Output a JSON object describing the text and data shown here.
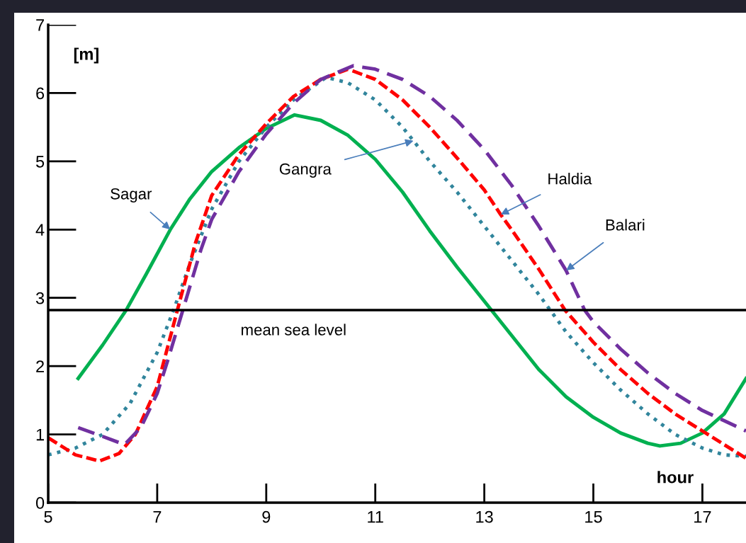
{
  "chart_data": {
    "type": "line",
    "xlabel": "hour",
    "ylabel": "[m]",
    "xlim": [
      5,
      17.8
    ],
    "ylim": [
      0,
      7
    ],
    "xticks": [
      5,
      7,
      9,
      11,
      13,
      15,
      17
    ],
    "yticks": [
      0,
      1,
      2,
      3,
      4,
      5,
      6,
      7
    ],
    "grid": false,
    "legend": false,
    "series": [
      {
        "color": "#00b050",
        "line_style": "solid",
        "x": [
          5.55,
          6,
          6.43,
          6.8,
          7.24,
          7.6,
          8,
          8.5,
          9,
          9.52,
          10,
          10.5,
          11,
          11.5,
          12,
          12.5,
          13.13,
          13.5,
          14,
          14.5,
          15,
          15.5,
          16,
          16.22,
          16.6,
          17,
          17.4,
          17.8
        ],
        "values": [
          1.82,
          2.31,
          2.82,
          3.35,
          4.0,
          4.45,
          4.85,
          5.2,
          5.48,
          5.68,
          5.6,
          5.38,
          5.03,
          4.55,
          3.98,
          3.45,
          2.82,
          2.45,
          1.95,
          1.55,
          1.25,
          1.02,
          0.87,
          0.83,
          0.87,
          1.02,
          1.3,
          1.82
        ]
      },
      {
        "color": "#31859c",
        "line_style": "dotted",
        "x": [
          5,
          5.5,
          6,
          6.5,
          7,
          7.3,
          7.6,
          8,
          8.5,
          9,
          9.5,
          10.1,
          10.5,
          11,
          11.5,
          11.7,
          12,
          12.5,
          13,
          13.5,
          14,
          14.5,
          15,
          15.5,
          16,
          16.5,
          17,
          17.4,
          17.8
        ],
        "values": [
          0.7,
          0.8,
          1.0,
          1.45,
          2.2,
          2.82,
          3.5,
          4.3,
          5.0,
          5.5,
          5.9,
          6.23,
          6.15,
          5.9,
          5.5,
          5.3,
          5.0,
          4.55,
          4.05,
          3.55,
          3.05,
          2.5,
          2.05,
          1.65,
          1.3,
          1.0,
          0.8,
          0.7,
          0.68
        ]
      },
      {
        "color": "#ff0000",
        "line_style": "dashed",
        "x": [
          5,
          5.5,
          5.94,
          6.3,
          6.6,
          7,
          7.37,
          7.7,
          8,
          8.5,
          9,
          9.5,
          10,
          10.5,
          11,
          11.5,
          12,
          12.5,
          13,
          13.3,
          13.5,
          14,
          14.48,
          15,
          15.5,
          16,
          16.5,
          17,
          17.4,
          17.8
        ],
        "values": [
          0.95,
          0.7,
          0.61,
          0.72,
          1.0,
          1.7,
          2.82,
          3.8,
          4.5,
          5.1,
          5.55,
          5.95,
          6.2,
          6.35,
          6.2,
          5.9,
          5.5,
          5.05,
          4.58,
          4.22,
          4.0,
          3.42,
          2.82,
          2.35,
          1.95,
          1.6,
          1.3,
          1.05,
          0.85,
          0.65
        ]
      },
      {
        "color": "#7030a0",
        "line_style": "dashed",
        "x": [
          5.55,
          6,
          6.4,
          6.7,
          7,
          7.2,
          7.47,
          7.8,
          8,
          8.5,
          9,
          9.5,
          10,
          10.6,
          11,
          11.5,
          12,
          12.5,
          13,
          13.5,
          14,
          14.5,
          14.84,
          15,
          15.5,
          16,
          16.5,
          17,
          17.4,
          17.8
        ],
        "values": [
          1.1,
          0.97,
          0.85,
          1.1,
          1.6,
          2.1,
          2.82,
          3.7,
          4.15,
          4.85,
          5.4,
          5.85,
          6.2,
          6.4,
          6.35,
          6.2,
          5.95,
          5.6,
          5.17,
          4.65,
          4.05,
          3.4,
          2.82,
          2.65,
          2.25,
          1.9,
          1.6,
          1.35,
          1.2,
          1.05
        ]
      }
    ],
    "ref_lines": [
      {
        "axis": "y",
        "value": 2.82,
        "label": "mean sea level",
        "color": "#000000",
        "line_style": "solid"
      }
    ],
    "annotations": [
      {
        "text": "Sagar",
        "x": 7.24,
        "y": 4.0
      },
      {
        "text": "Gangra",
        "x": 11.7,
        "y": 5.3
      },
      {
        "text": "Haldia",
        "x": 13.3,
        "y": 4.22
      },
      {
        "text": "Balari",
        "x": 14.5,
        "y": 3.4
      }
    ]
  }
}
